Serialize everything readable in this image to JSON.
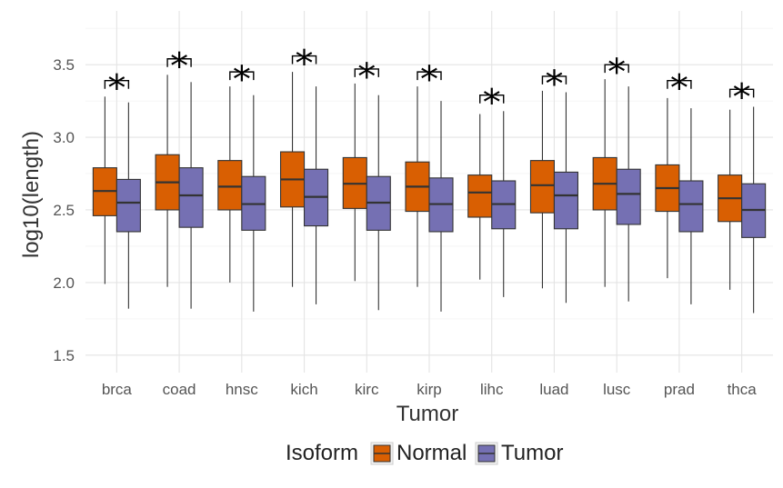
{
  "chart_data": {
    "type": "boxplot",
    "xlabel": "Tumor",
    "ylabel": "log10(length)",
    "ylim": [
      1.38,
      3.87
    ],
    "yticks": [
      "1.5",
      "2.0",
      "2.5",
      "3.0",
      "3.5"
    ],
    "grid": true,
    "legend": {
      "title": "Isoform",
      "position": "bottom",
      "entries": [
        "Normal",
        "Tumor"
      ]
    },
    "colors": {
      "Normal": "#d95f02",
      "Tumor": "#7570b3",
      "stroke": "#333333"
    },
    "significance_marker": "*",
    "categories": [
      "brca",
      "coad",
      "hnsc",
      "kich",
      "kirc",
      "kirp",
      "lihc",
      "luad",
      "lusc",
      "prad",
      "thca"
    ],
    "series": [
      {
        "name": "Normal",
        "boxes": [
          {
            "min": 1.99,
            "q1": 2.46,
            "median": 2.63,
            "q3": 2.79,
            "max": 3.28
          },
          {
            "min": 1.97,
            "q1": 2.5,
            "median": 2.69,
            "q3": 2.88,
            "max": 3.43
          },
          {
            "min": 2.0,
            "q1": 2.5,
            "median": 2.66,
            "q3": 2.84,
            "max": 3.35
          },
          {
            "min": 1.97,
            "q1": 2.52,
            "median": 2.71,
            "q3": 2.9,
            "max": 3.45
          },
          {
            "min": 2.01,
            "q1": 2.51,
            "median": 2.68,
            "q3": 2.86,
            "max": 3.37
          },
          {
            "min": 1.97,
            "q1": 2.49,
            "median": 2.66,
            "q3": 2.83,
            "max": 3.35
          },
          {
            "min": 2.02,
            "q1": 2.45,
            "median": 2.62,
            "q3": 2.74,
            "max": 3.16
          },
          {
            "min": 1.96,
            "q1": 2.48,
            "median": 2.67,
            "q3": 2.84,
            "max": 3.32
          },
          {
            "min": 1.97,
            "q1": 2.5,
            "median": 2.68,
            "q3": 2.86,
            "max": 3.4
          },
          {
            "min": 2.03,
            "q1": 2.49,
            "median": 2.65,
            "q3": 2.81,
            "max": 3.27
          },
          {
            "min": 1.95,
            "q1": 2.42,
            "median": 2.58,
            "q3": 2.74,
            "max": 3.19
          }
        ]
      },
      {
        "name": "Tumor",
        "boxes": [
          {
            "min": 1.82,
            "q1": 2.35,
            "median": 2.55,
            "q3": 2.71,
            "max": 3.24
          },
          {
            "min": 1.82,
            "q1": 2.38,
            "median": 2.6,
            "q3": 2.79,
            "max": 3.38
          },
          {
            "min": 1.8,
            "q1": 2.36,
            "median": 2.54,
            "q3": 2.73,
            "max": 3.29
          },
          {
            "min": 1.85,
            "q1": 2.39,
            "median": 2.59,
            "q3": 2.78,
            "max": 3.35
          },
          {
            "min": 1.81,
            "q1": 2.36,
            "median": 2.55,
            "q3": 2.73,
            "max": 3.29
          },
          {
            "min": 1.8,
            "q1": 2.35,
            "median": 2.54,
            "q3": 2.72,
            "max": 3.25
          },
          {
            "min": 1.9,
            "q1": 2.37,
            "median": 2.54,
            "q3": 2.7,
            "max": 3.18
          },
          {
            "min": 1.86,
            "q1": 2.37,
            "median": 2.6,
            "q3": 2.76,
            "max": 3.31
          },
          {
            "min": 1.87,
            "q1": 2.4,
            "median": 2.61,
            "q3": 2.78,
            "max": 3.35
          },
          {
            "min": 1.85,
            "q1": 2.35,
            "median": 2.54,
            "q3": 2.7,
            "max": 3.2
          },
          {
            "min": 1.79,
            "q1": 2.31,
            "median": 2.5,
            "q3": 2.68,
            "max": 3.21
          }
        ]
      }
    ],
    "annotations": [
      {
        "category": "brca",
        "bracket_y": 3.39,
        "label": "*"
      },
      {
        "category": "coad",
        "bracket_y": 3.54,
        "label": "*"
      },
      {
        "category": "hnsc",
        "bracket_y": 3.45,
        "label": "*"
      },
      {
        "category": "kich",
        "bracket_y": 3.56,
        "label": "*"
      },
      {
        "category": "kirc",
        "bracket_y": 3.47,
        "label": "*"
      },
      {
        "category": "kirp",
        "bracket_y": 3.45,
        "label": "*"
      },
      {
        "category": "lihc",
        "bracket_y": 3.29,
        "label": "*"
      },
      {
        "category": "luad",
        "bracket_y": 3.42,
        "label": "*"
      },
      {
        "category": "lusc",
        "bracket_y": 3.5,
        "label": "*"
      },
      {
        "category": "prad",
        "bracket_y": 3.39,
        "label": "*"
      },
      {
        "category": "thca",
        "bracket_y": 3.33,
        "label": "*"
      }
    ]
  }
}
